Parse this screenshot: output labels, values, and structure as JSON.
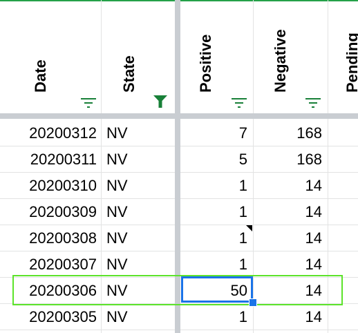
{
  "headers": {
    "date": "Date",
    "state": "State",
    "positive": "Positive",
    "negative": "Negative",
    "pending": "Pending"
  },
  "colors": {
    "filter_icon": "#188038",
    "active_border": "#1a73e8",
    "row_highlight": "#5ce32a",
    "freeze_bar": "#c9cdd2"
  },
  "rows": [
    {
      "date": "20200312",
      "state": "NV",
      "positive": "7",
      "negative": "168"
    },
    {
      "date": "20200311",
      "state": "NV",
      "positive": "5",
      "negative": "168"
    },
    {
      "date": "20200310",
      "state": "NV",
      "positive": "1",
      "negative": "14"
    },
    {
      "date": "20200309",
      "state": "NV",
      "positive": "1",
      "negative": "14"
    },
    {
      "date": "20200308",
      "state": "NV",
      "positive": "1",
      "negative": "14"
    },
    {
      "date": "20200307",
      "state": "NV",
      "positive": "1",
      "negative": "14"
    },
    {
      "date": "20200306",
      "state": "NV",
      "positive": "50",
      "negative": "14"
    },
    {
      "date": "20200305",
      "state": "NV",
      "positive": "1",
      "negative": "14"
    }
  ]
}
